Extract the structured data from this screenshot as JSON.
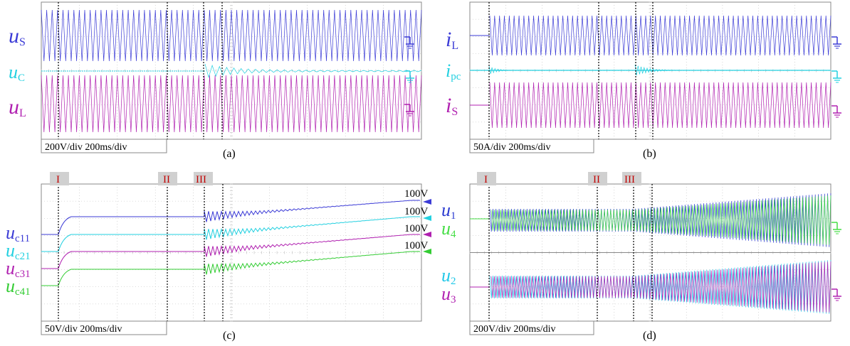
{
  "chart_data": [
    {
      "id": "a",
      "type": "line",
      "caption": "(a)",
      "scale": "200V/div 200ms/div",
      "series": [
        {
          "name": "uS",
          "base": "u",
          "sub": "S",
          "color": "#3b3bd6",
          "kind": "sine",
          "amp_div": 1.0,
          "cycles": 70
        },
        {
          "name": "uC",
          "base": "u",
          "sub": "C",
          "color": "#22d0e0",
          "kind": "transient",
          "amp_div": 0.15,
          "cycles": 70
        },
        {
          "name": "uL",
          "base": "u",
          "sub": "L",
          "color": "#b020b0",
          "kind": "sine",
          "amp_div": 1.2,
          "cycles": 70
        }
      ],
      "markers": []
    },
    {
      "id": "b",
      "type": "line",
      "caption": "(b)",
      "scale": "50A/div 200ms/div",
      "series": [
        {
          "name": "iL",
          "base": "i",
          "sub": "L",
          "color": "#3b3bd6",
          "kind": "sine",
          "amp_div": 1.0,
          "cycles": 70
        },
        {
          "name": "ipc",
          "base": "i",
          "sub": "pc",
          "color": "#22d0e0",
          "kind": "transient",
          "amp_div": 0.15,
          "cycles": 70
        },
        {
          "name": "iS",
          "base": "i",
          "sub": "S",
          "color": "#b020b0",
          "kind": "sine",
          "amp_div": 1.0,
          "cycles": 70
        }
      ],
      "markers": []
    },
    {
      "id": "c",
      "type": "line",
      "caption": "(c)",
      "scale": "50V/div 200ms/div",
      "markers": [
        "I",
        "II",
        "III"
      ],
      "right_labels": [
        "100V",
        "100V",
        "100V",
        "100V"
      ],
      "series": [
        {
          "name": "uc11",
          "base": "u",
          "sub": "c11",
          "color": "#3b3bd6",
          "kind": "dc"
        },
        {
          "name": "uc21",
          "base": "u",
          "sub": "c21",
          "color": "#22d0e0",
          "kind": "dc"
        },
        {
          "name": "uc31",
          "base": "u",
          "sub": "c31",
          "color": "#b020b0",
          "kind": "dc"
        },
        {
          "name": "uc41",
          "base": "u",
          "sub": "c41",
          "color": "#33cc33",
          "kind": "dc"
        }
      ]
    },
    {
      "id": "d",
      "type": "line",
      "caption": "(d)",
      "scale": "200V/div 200ms/div",
      "markers": [
        "I",
        "II",
        "III"
      ],
      "series": [
        {
          "name": "u1",
          "base": "u",
          "sub": "1",
          "color": "#2a3ad0",
          "kind": "sine",
          "cycles": 110
        },
        {
          "name": "u4",
          "base": "u",
          "sub": "4",
          "color": "#44dd44",
          "kind": "sine",
          "cycles": 110
        },
        {
          "name": "u2",
          "base": "u",
          "sub": "2",
          "color": "#22c8e8",
          "kind": "sine",
          "cycles": 110
        },
        {
          "name": "u3",
          "base": "u",
          "sub": "3",
          "color": "#b020b0",
          "kind": "sine",
          "cycles": 110
        }
      ]
    }
  ],
  "colors": {
    "grid": "#bbbbbb",
    "frame": "#888888",
    "marker_bg": "#d0d0d0",
    "marker_text": "#c00000"
  }
}
